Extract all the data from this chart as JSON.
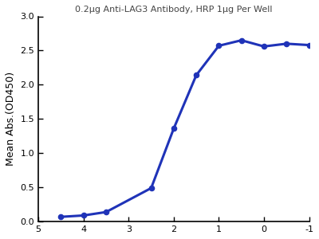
{
  "title": "0.2µg Anti-LAG3 Antibody, HRP 1µg Per Well",
  "ylabel": "Mean Abs.(OD450)",
  "xlabel": "",
  "curve_color": "#1f33b8",
  "dot_color": "#1f33b8",
  "ylim": [
    0.0,
    3.0
  ],
  "xticks": [
    5,
    4,
    3,
    2,
    1,
    0,
    -1
  ],
  "yticks": [
    0.0,
    0.5,
    1.0,
    1.5,
    2.0,
    2.5,
    3.0
  ],
  "data_x": [
    4.5,
    4.0,
    3.5,
    2.5,
    2.0,
    1.5,
    1.0,
    0.5,
    0.0,
    -0.5,
    -1.0
  ],
  "data_y": [
    0.07,
    0.09,
    0.14,
    0.49,
    1.36,
    2.14,
    2.57,
    2.65,
    2.56,
    2.6,
    2.58
  ],
  "title_fontsize": 8,
  "label_fontsize": 9,
  "tick_fontsize": 8,
  "dot_size": 20,
  "line_width": 2.2
}
